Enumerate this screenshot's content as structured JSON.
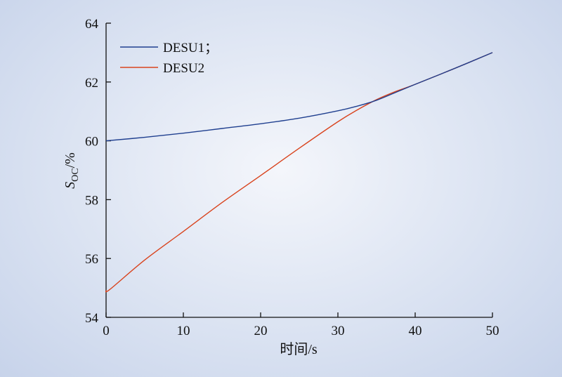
{
  "chart_data": {
    "type": "line",
    "title": "",
    "xlabel": "时间/s",
    "ylabel": {
      "main": "S",
      "sub": "OC",
      "suffix": "/%"
    },
    "xlim": [
      0,
      50
    ],
    "ylim": [
      54,
      64
    ],
    "xticks": [
      0,
      10,
      20,
      30,
      40,
      50
    ],
    "yticks": [
      54,
      56,
      58,
      60,
      62,
      64
    ],
    "grid": false,
    "legend_position": "top-left",
    "series": [
      {
        "name": "DESU1；",
        "color": "#1f3f8f",
        "x": [
          0,
          5,
          10,
          15,
          20,
          25,
          30,
          32.5,
          35,
          37.5,
          40,
          45,
          50
        ],
        "y": [
          60.0,
          60.12,
          60.26,
          60.42,
          60.58,
          60.77,
          61.02,
          61.18,
          61.38,
          61.65,
          61.92,
          62.45,
          63.0
        ]
      },
      {
        "name": "DESU2",
        "color": "#d9441e",
        "x": [
          0,
          0.5,
          5,
          10,
          15,
          20,
          25,
          30,
          32.5,
          35,
          37.5,
          40,
          45,
          50
        ],
        "y": [
          54.92,
          54.95,
          55.95,
          56.92,
          57.9,
          58.82,
          59.75,
          60.65,
          61.05,
          61.4,
          61.68,
          61.92,
          62.45,
          63.0
        ]
      }
    ]
  }
}
